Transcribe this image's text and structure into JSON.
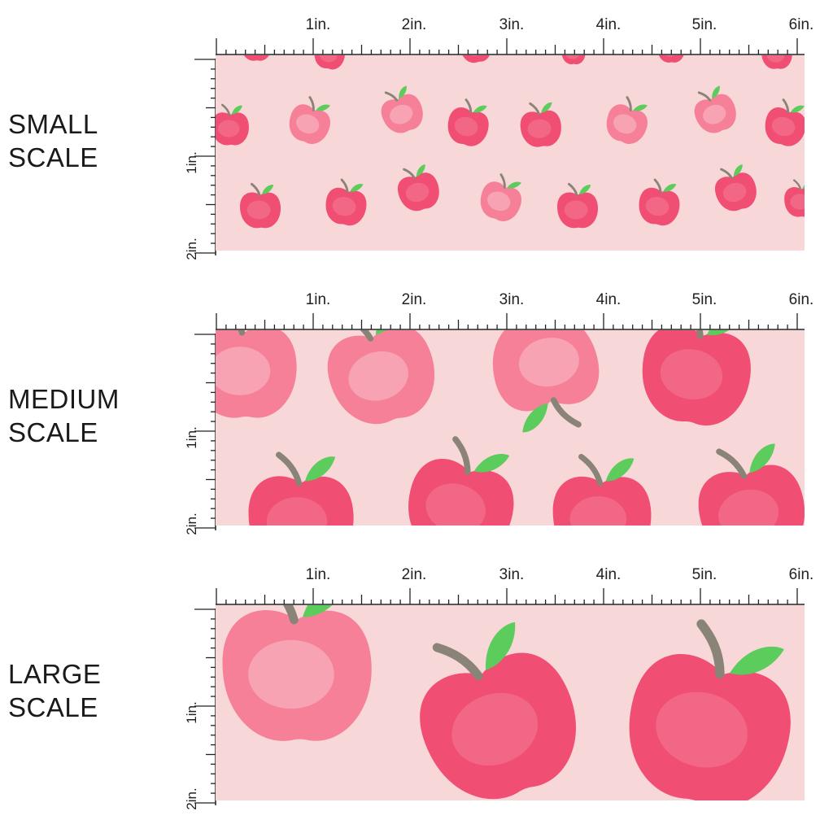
{
  "sections": [
    {
      "id": "small",
      "line1": "SMALL",
      "line2": "SCALE"
    },
    {
      "id": "medium",
      "line1": "MEDIUM",
      "line2": "SCALE"
    },
    {
      "id": "large",
      "line1": "LARGE",
      "line2": "SCALE"
    }
  ],
  "ruler": {
    "top_labels": [
      "1in.",
      "2in.",
      "3in.",
      "4in.",
      "5in.",
      "6in."
    ],
    "side_labels": [
      "1in.",
      "2in."
    ]
  },
  "colors": {
    "background": "#f7d7d7",
    "apple": "#f0476e",
    "apple_light": "#f57b95",
    "leaf": "#5ccc5c",
    "stem": "#8a8478"
  }
}
